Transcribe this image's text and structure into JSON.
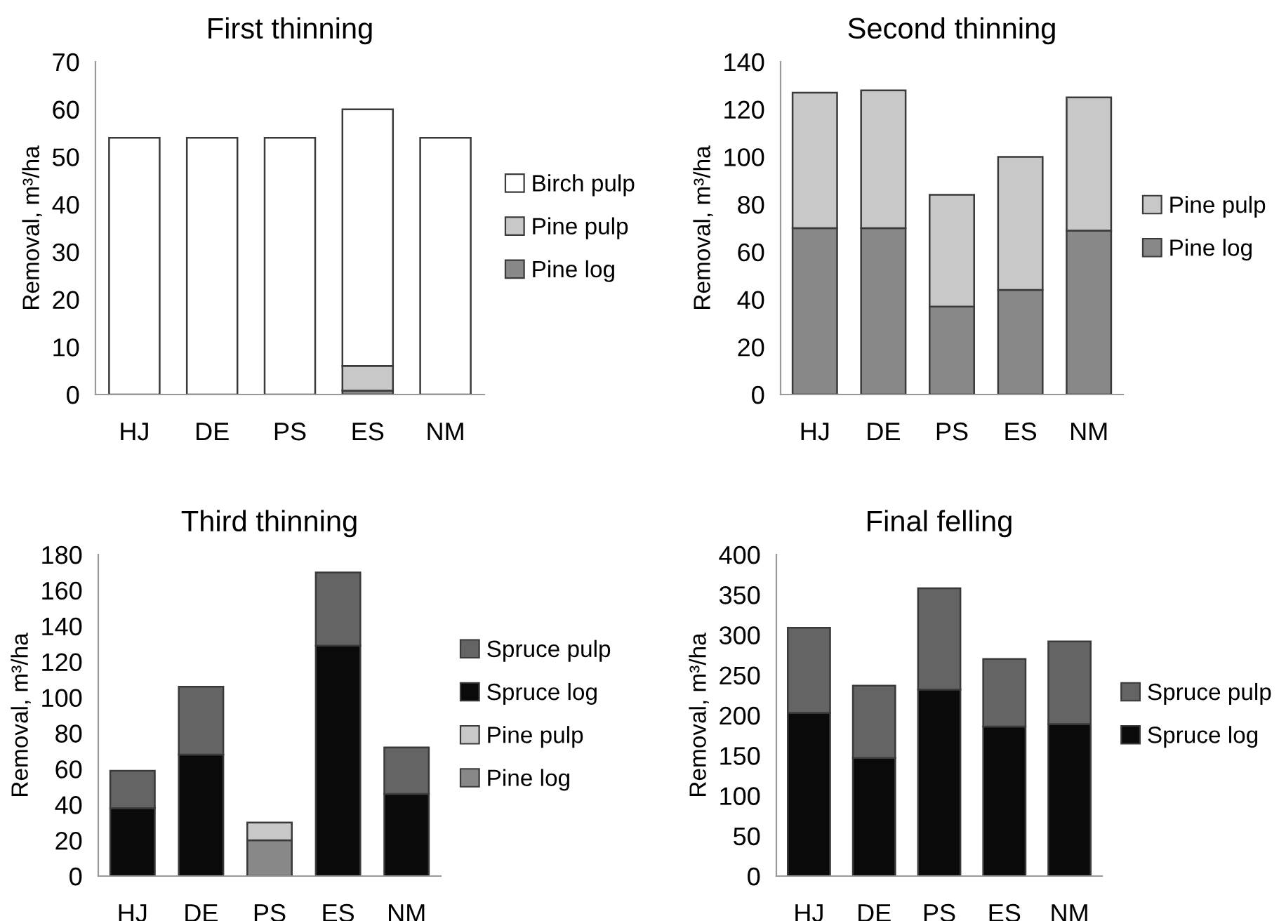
{
  "chart_data": [
    {
      "type": "bar",
      "stacked": true,
      "title": "First thinning",
      "ylabel": "Removal, m³/ha",
      "categories": [
        "HJ",
        "DE",
        "PS",
        "ES",
        "NM"
      ],
      "ylim": [
        0,
        70
      ],
      "yticks": [
        0,
        10,
        20,
        30,
        40,
        50,
        60,
        70
      ],
      "legend": "right",
      "grid": false,
      "series": [
        {
          "name": "Pine log",
          "color": "#888888",
          "values": [
            0,
            0,
            0,
            0.8,
            0
          ]
        },
        {
          "name": "Pine pulp",
          "color": "#c8c8c8",
          "values": [
            0,
            0,
            0,
            5.2,
            0
          ]
        },
        {
          "name": "Birch pulp",
          "color": "#ffffff",
          "values": [
            54,
            54,
            54,
            54,
            54
          ]
        }
      ]
    },
    {
      "type": "bar",
      "stacked": true,
      "title": "Second thinning",
      "ylabel": "Removal, m³/ha",
      "categories": [
        "HJ",
        "DE",
        "PS",
        "ES",
        "NM"
      ],
      "ylim": [
        0,
        140
      ],
      "yticks": [
        0,
        20,
        40,
        60,
        80,
        100,
        120,
        140
      ],
      "legend": "right",
      "grid": false,
      "series": [
        {
          "name": "Pine log",
          "color": "#888888",
          "values": [
            70,
            70,
            37,
            44,
            69
          ]
        },
        {
          "name": "Pine pulp",
          "color": "#c8c8c8",
          "values": [
            57,
            58,
            47,
            56,
            56
          ]
        }
      ]
    },
    {
      "type": "bar",
      "stacked": true,
      "title": "Third thinning",
      "ylabel": "Removal, m³/ha",
      "categories": [
        "HJ",
        "DE",
        "PS",
        "ES",
        "NM"
      ],
      "ylim": [
        0,
        180
      ],
      "yticks": [
        0,
        20,
        40,
        60,
        80,
        100,
        120,
        140,
        160,
        180
      ],
      "legend": "right",
      "grid": false,
      "series": [
        {
          "name": "Pine log",
          "color": "#888888",
          "values": [
            0,
            0,
            20,
            0,
            0
          ]
        },
        {
          "name": "Pine pulp",
          "color": "#c8c8c8",
          "values": [
            0,
            0,
            10,
            0,
            0
          ]
        },
        {
          "name": "Spruce log",
          "color": "#0a0a0a",
          "values": [
            38,
            68,
            0,
            129,
            46
          ]
        },
        {
          "name": "Spruce pulp",
          "color": "#646464",
          "values": [
            21,
            38,
            0,
            41,
            26
          ]
        }
      ]
    },
    {
      "type": "bar",
      "stacked": true,
      "title": "Final felling",
      "ylabel": "Removal, m³/ha",
      "categories": [
        "HJ",
        "DE",
        "PS",
        "ES",
        "NM"
      ],
      "ylim": [
        0,
        400
      ],
      "yticks": [
        0,
        50,
        100,
        150,
        200,
        250,
        300,
        350,
        400
      ],
      "legend": "right",
      "grid": false,
      "series": [
        {
          "name": "Spruce log",
          "color": "#0a0a0a",
          "values": [
            203,
            147,
            232,
            186,
            189
          ]
        },
        {
          "name": "Spruce pulp",
          "color": "#646464",
          "values": [
            106,
            90,
            126,
            84,
            103
          ]
        }
      ]
    }
  ]
}
